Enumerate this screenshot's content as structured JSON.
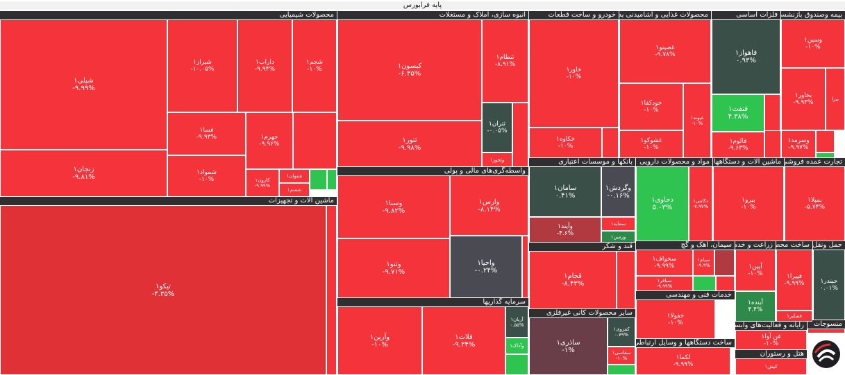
{
  "colors": {
    "red": "#f4333a",
    "deep_red": "#e03136",
    "green": "#2fc350",
    "dark_green": "#3a4f48",
    "dark_gray": "#4a4a52",
    "maroon": "#6a3e48",
    "header": "#2f2f31"
  },
  "title": "پایه فرابورس",
  "headers": [
    {
      "label": "محصولات شیمیایی"
    },
    {
      "label": "انبوه سازی، املاک و مستغلات"
    },
    {
      "label": "خودرو و ساخت قطعات"
    },
    {
      "label": "محصولات غذایی و آشامیدنی به"
    },
    {
      "label": "فلزات اساسی"
    },
    {
      "label": "بیمه وصندوق بازنشست"
    },
    {
      "label": "ماشین آلات و تجهیزات"
    },
    {
      "label": "واسطه‌گری‌های مالی و پولی"
    },
    {
      "label": "بانکها و موسسات اعتباری"
    },
    {
      "label": "مواد و محصولات دارویی"
    },
    {
      "label": "ماشین آلات و دستگاههای"
    },
    {
      "label": "تجارت عمده فروشی به"
    },
    {
      "label": "قند و شکر"
    },
    {
      "label": "سیمان، آهک و گچ"
    },
    {
      "label": "زراعت و خدم"
    },
    {
      "label": "ساخت محص"
    },
    {
      "label": "حمل ونقل"
    },
    {
      "label": "سرمایه گذاریها"
    },
    {
      "label": "خدمات فنی و مهندسی"
    },
    {
      "label": "سایر محصولات کانی غیرفلزی"
    },
    {
      "label": "رایانه و فعالیت‌های وابسته"
    },
    {
      "label": "ساخت دستگاهها و وسایل ارتباطی"
    },
    {
      "label": "منسوجات"
    },
    {
      "label": "هتل و رستوران"
    }
  ],
  "tiles": [
    {
      "name": "شپلی۱",
      "pct": "-۹.۹۹%",
      "color": "#f4333a"
    },
    {
      "name": "شیراز۱",
      "pct": "-۱۰.۰۵%",
      "color": "#f4333a"
    },
    {
      "name": "داراب۱",
      "pct": "-۹.۹۴%",
      "color": "#f4333a"
    },
    {
      "name": "شجم۱",
      "pct": "-۱۰%",
      "color": "#f4333a"
    },
    {
      "name": "فسا۱",
      "pct": "-۹.۹۳%",
      "color": "#f4333a"
    },
    {
      "name": "جهرم۱",
      "pct": "-۹.۹۶%",
      "color": "#f4333a"
    },
    {
      "name": "",
      "pct": "",
      "color": "#f4333a"
    },
    {
      "name": "زنجان۱",
      "pct": "-۹.۸۱%",
      "color": "#f4333a"
    },
    {
      "name": "شمواد۱",
      "pct": "-۱۰%",
      "color": "#f4333a"
    },
    {
      "name": "کارون۱",
      "pct": "-۹.۹۹%",
      "color": "#f4333a"
    },
    {
      "name": "شنوان۱",
      "pct": "",
      "color": "#f4333a"
    },
    {
      "name": "شسم۱",
      "pct": "",
      "color": "#f4333a"
    },
    {
      "name": "",
      "pct": "",
      "color": "#2fc350"
    },
    {
      "name": "",
      "pct": "",
      "color": "#2fc350"
    },
    {
      "name": "تیکو۱",
      "pct": "-۴.۳۵%",
      "color": "#e03136"
    },
    {
      "name": "",
      "pct": "",
      "color": "#f4333a"
    },
    {
      "name": "کیسون۱",
      "pct": "-۶.۳۵%",
      "color": "#f4333a"
    },
    {
      "name": "ثنظام۱",
      "pct": "-۸.۹۱%",
      "color": "#f4333a"
    },
    {
      "name": "ثتور۱",
      "pct": "-۹.۹۸%",
      "color": "#f4333a"
    },
    {
      "name": "ثتران۱",
      "pct": "-۰.۰۵%",
      "color": "#3a4f48"
    },
    {
      "name": "وثخوز۱",
      "pct": "",
      "color": "#f4333a"
    },
    {
      "name": "",
      "pct": "",
      "color": "#f4333a"
    },
    {
      "name": "خاور۱",
      "pct": "-۱۰%",
      "color": "#f4333a"
    },
    {
      "name": "خکاوه۱",
      "pct": "-۱۰%",
      "color": "#f4333a"
    },
    {
      "name": "",
      "pct": "",
      "color": "#f4333a"
    },
    {
      "name": "غصینو۱",
      "pct": "-۹.۷۸%",
      "color": "#f4333a"
    },
    {
      "name": "خودکفا۱",
      "pct": "-۱۰%",
      "color": "#f4333a"
    },
    {
      "name": "غپونه۱",
      "pct": "-۱۰%",
      "color": "#f4333a"
    },
    {
      "name": "غشوکو۱",
      "pct": "-۱۰%",
      "color": "#f4333a"
    },
    {
      "name": "فاهواز۱",
      "pct": "۰.۹۳%",
      "color": "#3a4f48"
    },
    {
      "name": "فنفت۱",
      "pct": "۴.۳۸%",
      "color": "#2fc350"
    },
    {
      "name": "فالوم۱",
      "pct": "-۹.۶۳%",
      "color": "#f4333a"
    },
    {
      "name": "",
      "pct": "",
      "color": "#f4333a"
    },
    {
      "name": "وسین۱",
      "pct": "-۱۰%",
      "color": "#f4333a"
    },
    {
      "name": "",
      "pct": "",
      "color": "#f4333a"
    },
    {
      "name": "بخاور۱",
      "pct": "-۹.۹۳%",
      "color": "#f4333a"
    },
    {
      "name": "بیرا",
      "pct": "",
      "color": "#f4333a"
    },
    {
      "name": "",
      "pct": "",
      "color": "#f4333a"
    },
    {
      "name": "وسرمد۱",
      "pct": "-۹.۹۷%",
      "color": "#f4333a"
    },
    {
      "name": "",
      "pct": "",
      "color": "#f4333a"
    },
    {
      "name": "",
      "pct": "",
      "color": "#2fc350"
    },
    {
      "name": "وسنا۱",
      "pct": "-۹.۸۲%",
      "color": "#f4333a"
    },
    {
      "name": "وارس۱",
      "pct": "-۸.۱۴%",
      "color": "#f4333a"
    },
    {
      "name": "وثنو۱",
      "pct": "-۹.۷۱%",
      "color": "#f4333a"
    },
    {
      "name": "واحیا۱",
      "pct": "-۰.۲۴%",
      "color": "#4a4a52"
    },
    {
      "name": "",
      "pct": "",
      "color": "#f4333a"
    },
    {
      "name": "سامان۱",
      "pct": "۰.۴۱%",
      "color": "#3a4f48"
    },
    {
      "name": "وگردش۱",
      "pct": "-۰.۱۶%",
      "color": "#4a4a52"
    },
    {
      "name": "وآیند۱",
      "pct": "-۴.۶%",
      "color": "#b03a40"
    },
    {
      "name": "سمایه۱",
      "pct": "",
      "color": "#f4333a"
    },
    {
      "name": "وزمین۱",
      "pct": "",
      "color": "#2e8a48"
    },
    {
      "name": "دحاوی۱",
      "pct": "۵.۰۳%",
      "color": "#2fc350"
    },
    {
      "name": "دکامی۱",
      "pct": "-۷.۹۷%",
      "color": "#f4333a"
    },
    {
      "name": "بیرو۱",
      "pct": "-۱۰%",
      "color": "#f4333a"
    },
    {
      "name": "بمپلا۱",
      "pct": "-۵.۷۴%",
      "color": "#f4333a"
    },
    {
      "name": "قجام۱",
      "pct": "-۸.۴۳%",
      "color": "#f4333a"
    },
    {
      "name": "",
      "pct": "",
      "color": "#f4333a"
    },
    {
      "name": "سخواف۱",
      "pct": "-۹.۹۹%",
      "color": "#f4333a"
    },
    {
      "name": "سیام۱",
      "pct": "-۹.۹%",
      "color": "#f4333a"
    },
    {
      "name": "",
      "pct": "",
      "color": "#b03a40"
    },
    {
      "name": "سباقر۱",
      "pct": "-۹.۹۹%",
      "color": "#f4333a"
    },
    {
      "name": "",
      "pct": "",
      "color": "#2fc350"
    },
    {
      "name": "",
      "pct": "",
      "color": "#f4333a"
    },
    {
      "name": "آپین۱",
      "pct": "-۱۰%",
      "color": "#f4333a"
    },
    {
      "name": "آینده۱",
      "pct": "۴.۴%",
      "color": "#2e8a48"
    },
    {
      "name": "فپیرا۱",
      "pct": "-۹.۹۹%",
      "color": "#f4333a"
    },
    {
      "name": "فسلیر۱",
      "pct": "",
      "color": "#f4333a"
    },
    {
      "name": "حبندر۱",
      "pct": "۰.۰۱%",
      "color": "#3a4f48"
    },
    {
      "name": "وآرین۱",
      "pct": "-۱۰%",
      "color": "#f4333a"
    },
    {
      "name": "فلات۱",
      "pct": "-۹.۳۴%",
      "color": "#f4333a"
    },
    {
      "name": "آریان۱",
      "pct": "۰.۵۵%",
      "color": "#3a4f48"
    },
    {
      "name": "وآداک۱",
      "pct": "",
      "color": "#2fc350"
    },
    {
      "name": "",
      "pct": "",
      "color": "#2fc350"
    },
    {
      "name": "خفولا۱",
      "pct": "-۱۰%",
      "color": "#f4333a"
    },
    {
      "name": "ساذری۱",
      "pct": "-۱%",
      "color": "#6a3e48"
    },
    {
      "name": "کفزوی۱",
      "pct": "۰.۷۹%",
      "color": "#3a4f48"
    },
    {
      "name": "سفاسی۱",
      "pct": "-۱۰%",
      "color": "#f4333a"
    },
    {
      "name": "",
      "pct": "",
      "color": "#2fc350"
    },
    {
      "name": "فن آوا۱",
      "pct": "-۱۰%",
      "color": "#f4333a"
    },
    {
      "name": "لکما۱",
      "pct": "-۹.۹۹%",
      "color": "#f4333a"
    },
    {
      "name": "کیش۱",
      "pct": "",
      "color": "#f4333a"
    },
    {
      "name": "",
      "pct": "",
      "color": "#f4333a"
    }
  ]
}
